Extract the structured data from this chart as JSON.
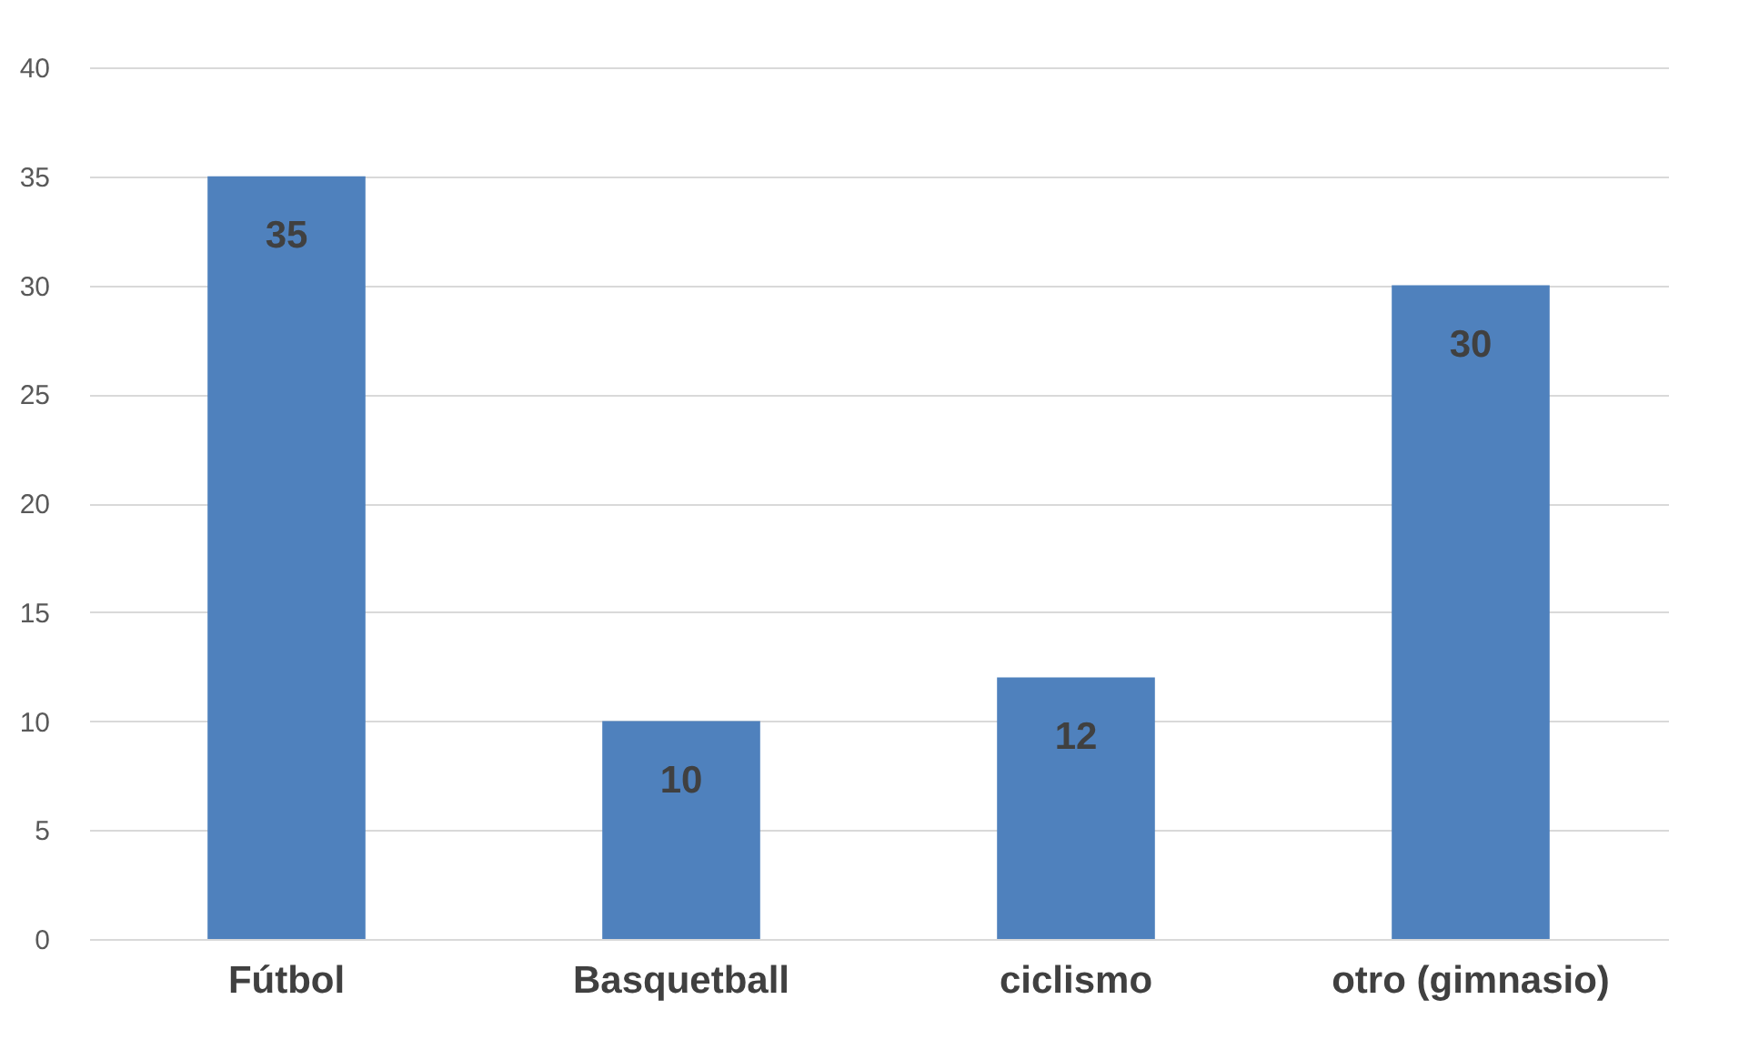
{
  "chart_data": {
    "type": "bar",
    "categories": [
      "Fútbol",
      "Basquetball",
      "ciclismo",
      "otro (gimnasio)"
    ],
    "values": [
      35,
      10,
      12,
      30
    ],
    "color": "#4f81bd",
    "ylim": [
      0,
      40
    ],
    "yticks": [
      0,
      5,
      10,
      15,
      20,
      25,
      30,
      35,
      40
    ],
    "grid": "y",
    "data_labels": true
  }
}
